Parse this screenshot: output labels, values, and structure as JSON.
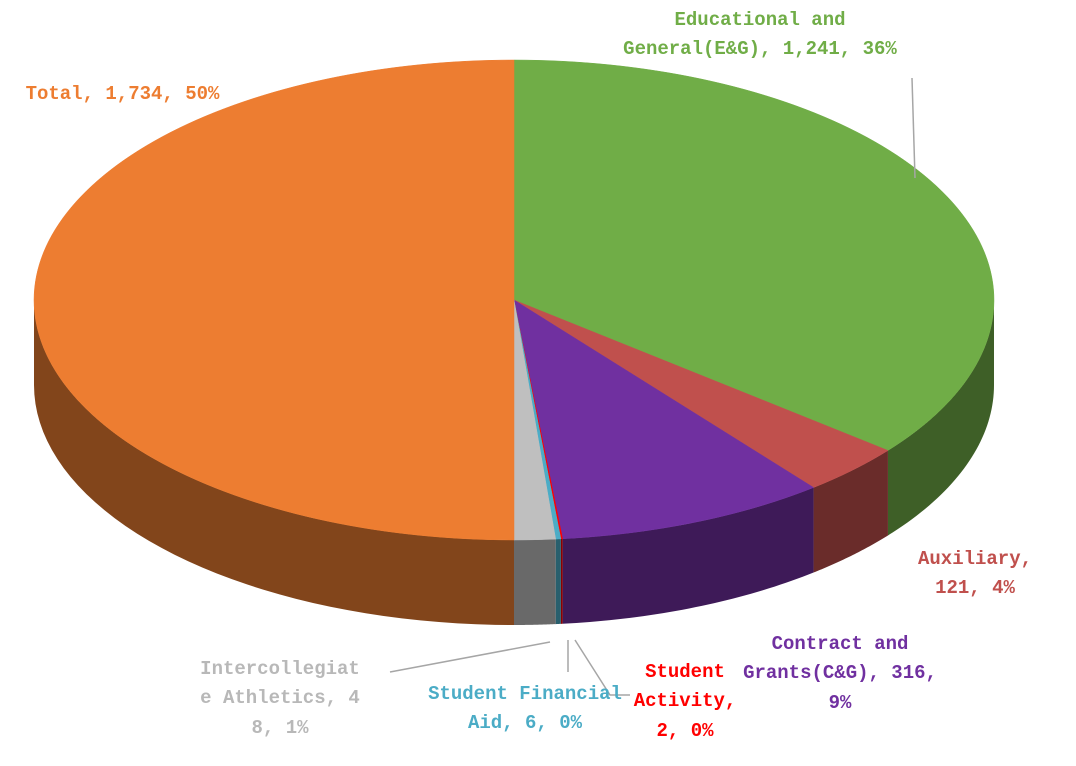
{
  "chart_data": {
    "type": "pie3d",
    "values": [
      1241,
      121,
      316,
      2,
      6,
      48,
      1734
    ],
    "data_labels": [
      "Educational and General(E&G), 1,241, 36%",
      "Auxiliary, 121, 4%",
      "Contract and Grants(C&G), 316, 9%",
      "Student Activity, 2, 0%",
      "Student Financial Aid, 6, 0%",
      "Intercollegiate Athletics, 48, 1%",
      "Total, 1,734, 50%"
    ],
    "colors": [
      "#70ad47",
      "#c0504d",
      "#7030a0",
      "#ff0000",
      "#4bacc6",
      "#bfbfbf",
      "#ed7d31"
    ]
  }
}
